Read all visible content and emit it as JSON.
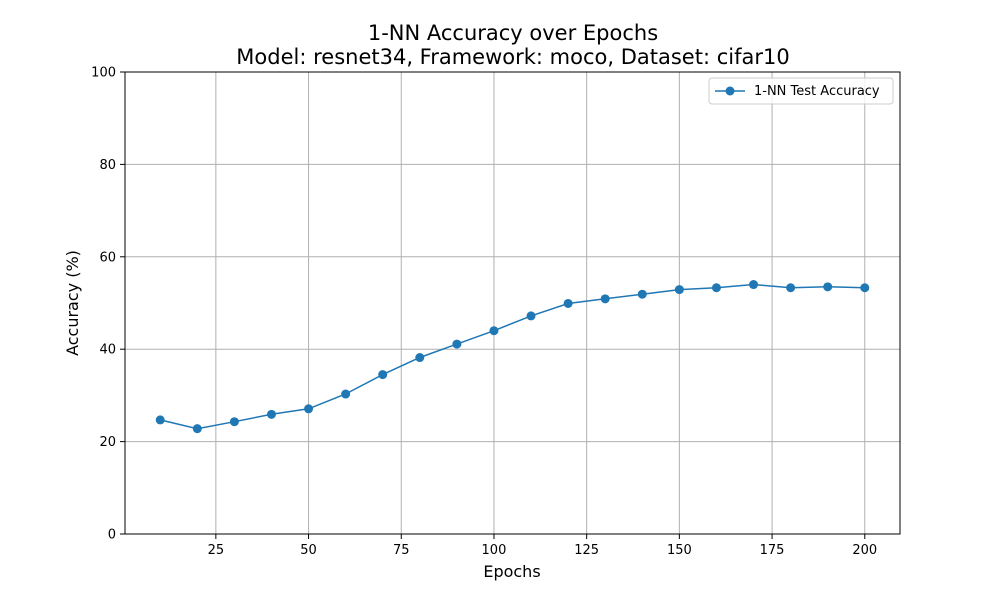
{
  "chart_data": {
    "type": "line",
    "title": "1-NN Accuracy over Epochs",
    "subtitle": "Model: resnet34, Framework: moco, Dataset: cifar10",
    "xlabel": "Epochs",
    "ylabel": "Accuracy (%)",
    "xlim": [
      0.5,
      209.5
    ],
    "ylim": [
      0,
      100
    ],
    "xticks": [
      25,
      50,
      75,
      100,
      125,
      150,
      175,
      200
    ],
    "yticks": [
      0,
      20,
      40,
      60,
      80,
      100
    ],
    "grid": true,
    "legend_position": "top-right",
    "series": [
      {
        "name": "1-NN Test Accuracy",
        "color": "#1f77b4",
        "marker": "circle",
        "x": [
          10,
          20,
          30,
          40,
          50,
          60,
          70,
          80,
          90,
          100,
          110,
          120,
          130,
          140,
          150,
          160,
          170,
          180,
          190,
          200
        ],
        "y": [
          24.7,
          22.8,
          24.3,
          25.9,
          27.1,
          30.3,
          34.5,
          38.2,
          41.1,
          44.0,
          47.2,
          49.9,
          50.9,
          51.9,
          52.9,
          53.3,
          54.0,
          53.3,
          53.5,
          53.3
        ]
      }
    ]
  }
}
